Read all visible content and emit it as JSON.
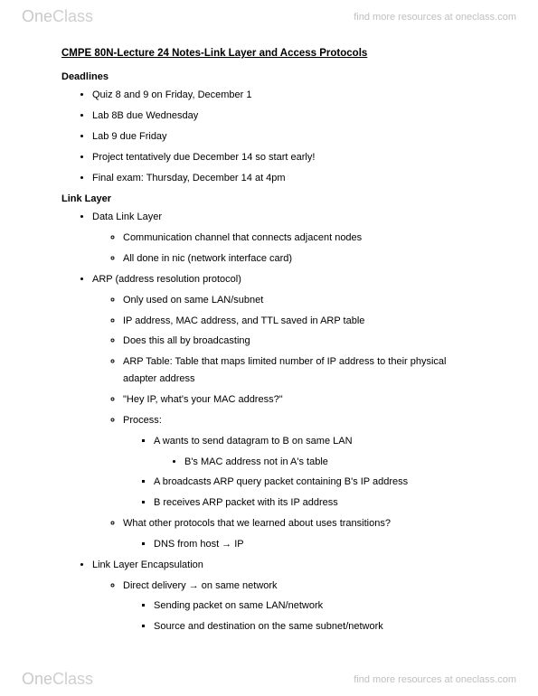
{
  "brand": {
    "part1": "One",
    "part2": "Class"
  },
  "tagline": "find more resources at oneclass.com",
  "title": "CMPE 80N-Lecture 24 Notes-Link Layer and Access Protocols",
  "sections": {
    "deadlines": {
      "heading": "Deadlines",
      "items": [
        "Quiz 8 and 9 on Friday, December 1",
        "Lab 8B due Wednesday",
        "Lab 9 due Friday",
        "Project tentatively due December 14 so start early!",
        "Final exam: Thursday, December 14 at 4pm"
      ]
    },
    "linklayer": {
      "heading": "Link Layer",
      "b1": "Data Link Layer",
      "b1s": [
        "Communication channel that connects adjacent nodes",
        "All done in nic (network interface card)"
      ],
      "b2": "ARP (address resolution protocol)",
      "b2s": {
        "i0": "Only used on same LAN/subnet",
        "i1": "IP address, MAC address, and TTL saved in ARP table",
        "i2": "Does this all by broadcasting",
        "i3a": "ARP Table: Table that maps limited number of IP address to their physical",
        "i3b": "adapter address",
        "i4": "\"Hey IP, what's your MAC address?\"",
        "i5": "Process:",
        "i5s": {
          "a": "A wants to send datagram to B on same LAN",
          "a1": "B's MAC address not in A's table",
          "b": "A broadcasts ARP query packet containing B's IP address",
          "c": "B receives ARP packet with its IP address"
        },
        "i6": "What other protocols that we learned about uses transitions?",
        "i6s": "DNS from host → IP"
      },
      "b3": "Link Layer Encapsulation",
      "b3s": {
        "i0": "Direct delivery → on same network",
        "i0s": [
          "Sending packet on same LAN/network",
          "Source and destination on the same subnet/network"
        ]
      }
    }
  }
}
